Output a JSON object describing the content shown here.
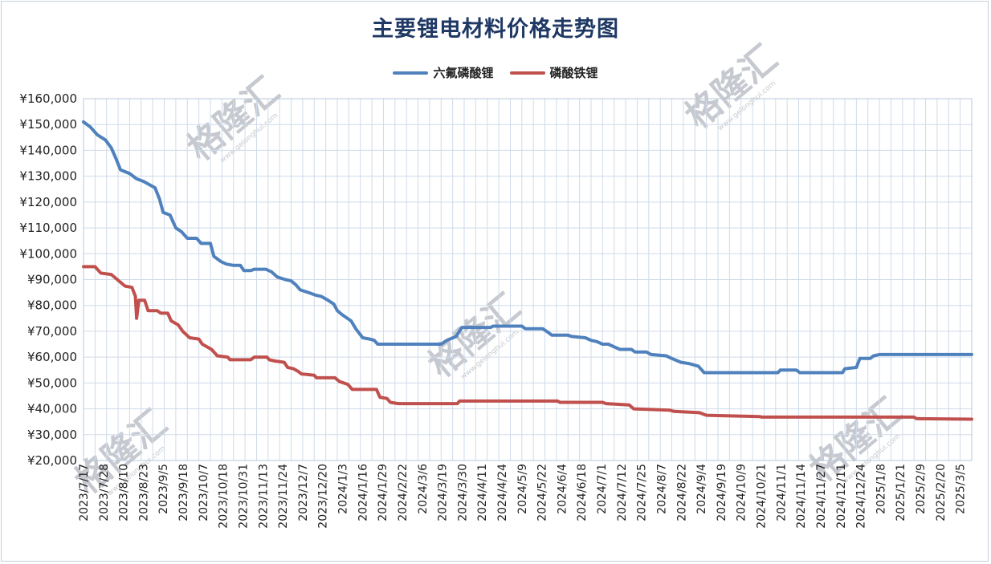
{
  "chart_data": {
    "type": "line",
    "title": "主要锂电材料价格走势图",
    "xlabel": "",
    "ylabel": "",
    "ylim": [
      20000,
      160000
    ],
    "y_ticks": [
      "¥20,000",
      "¥30,000",
      "¥40,000",
      "¥50,000",
      "¥60,000",
      "¥70,000",
      "¥80,000",
      "¥90,000",
      "¥100,000",
      "¥110,000",
      "¥120,000",
      "¥130,000",
      "¥140,000",
      "¥150,000",
      "¥160,000"
    ],
    "x_ticks": [
      "2023/7/17",
      "2023/7/28",
      "2023/8/10",
      "2023/8/23",
      "2023/9/5",
      "2023/9/18",
      "2023/10/7",
      "2023/10/18",
      "2023/10/31",
      "2023/11/13",
      "2023/11/24",
      "2023/12/7",
      "2023/12/20",
      "2024/1/3",
      "2024/1/16",
      "2024/1/29",
      "2024/2/22",
      "2024/3/6",
      "2024/3/19",
      "2024/3/30",
      "2024/4/11",
      "2024/4/24",
      "2024/5/9",
      "2024/5/22",
      "2024/6/4",
      "2024/6/18",
      "2024/7/1",
      "2024/7/12",
      "2024/7/25",
      "2024/8/7",
      "2024/8/22",
      "2024/9/4",
      "2024/9/19",
      "2024/10/9",
      "2024/10/21",
      "2024/11/1",
      "2024/11/14",
      "2024/11/27",
      "2024/12/11",
      "2024/12/24",
      "2025/1/8",
      "2025/1/21",
      "2025/2/9",
      "2025/2/20",
      "2025/3/5"
    ],
    "grid": true,
    "legend_position": "top-center",
    "series": [
      {
        "name": "六氟磷酸锂",
        "color": "#4f81bd",
        "points": [
          [
            0,
            151000
          ],
          [
            0.6,
            149000
          ],
          [
            1.2,
            146000
          ],
          [
            1.9,
            144000
          ],
          [
            2.4,
            141000
          ],
          [
            2.8,
            137000
          ],
          [
            3.2,
            132500
          ],
          [
            4,
            131000
          ],
          [
            4.6,
            129000
          ],
          [
            5.2,
            128000
          ],
          [
            5.8,
            126500
          ],
          [
            6.2,
            125500
          ],
          [
            6.6,
            121000
          ],
          [
            6.9,
            116000
          ],
          [
            7.5,
            115000
          ],
          [
            8,
            110000
          ],
          [
            8.5,
            108500
          ],
          [
            9,
            106000
          ],
          [
            9.8,
            106000
          ],
          [
            10.2,
            104000
          ],
          [
            11,
            104000
          ],
          [
            11.3,
            99000
          ],
          [
            11.9,
            97000
          ],
          [
            12.4,
            96000
          ],
          [
            13,
            95500
          ],
          [
            13.6,
            95500
          ],
          [
            13.9,
            93500
          ],
          [
            14.5,
            93500
          ],
          [
            14.8,
            94000
          ],
          [
            15.8,
            94000
          ],
          [
            16.3,
            93000
          ],
          [
            16.8,
            91000
          ],
          [
            17.5,
            90000
          ],
          [
            18,
            89500
          ],
          [
            18.4,
            88000
          ],
          [
            18.8,
            86000
          ],
          [
            19.5,
            85000
          ],
          [
            20.1,
            84000
          ],
          [
            20.6,
            83500
          ],
          [
            21.2,
            82000
          ],
          [
            21.7,
            80500
          ],
          [
            22,
            78000
          ],
          [
            22.4,
            76500
          ],
          [
            23.2,
            74000
          ],
          [
            23.6,
            71000
          ],
          [
            24.2,
            67500
          ],
          [
            24.8,
            67000
          ],
          [
            25.2,
            66500
          ],
          [
            25.5,
            65000
          ],
          [
            31,
            65000
          ],
          [
            31.5,
            66500
          ],
          [
            32.3,
            68000
          ],
          [
            32.8,
            71500
          ],
          [
            35.3,
            71500
          ],
          [
            35.5,
            72000
          ],
          [
            38,
            72000
          ],
          [
            38.3,
            71000
          ],
          [
            39.8,
            71000
          ],
          [
            40.3,
            69500
          ],
          [
            40.6,
            68500
          ],
          [
            42,
            68500
          ],
          [
            42.3,
            68000
          ],
          [
            43.5,
            67500
          ],
          [
            44,
            66500
          ],
          [
            44.5,
            66000
          ],
          [
            45,
            65000
          ],
          [
            45.5,
            65000
          ],
          [
            46,
            64000
          ],
          [
            46.5,
            63000
          ],
          [
            47.5,
            63000
          ],
          [
            47.8,
            62000
          ],
          [
            48.8,
            62000
          ],
          [
            49.2,
            61000
          ],
          [
            50.5,
            60500
          ],
          [
            51,
            59500
          ],
          [
            51.8,
            58000
          ],
          [
            52.5,
            57500
          ],
          [
            53.3,
            56500
          ],
          [
            53.8,
            54000
          ],
          [
            60.2,
            54000
          ],
          [
            60.4,
            55000
          ],
          [
            61.8,
            55000
          ],
          [
            62.1,
            54000
          ],
          [
            65.8,
            54000
          ],
          [
            66,
            55500
          ],
          [
            67,
            56000
          ],
          [
            67.3,
            59500
          ],
          [
            68.2,
            59500
          ],
          [
            68.5,
            60500
          ],
          [
            69,
            61000
          ],
          [
            77,
            61000
          ]
        ]
      },
      {
        "name": "磷酸铁锂",
        "color": "#c0504d",
        "points": [
          [
            0,
            95000
          ],
          [
            1,
            95000
          ],
          [
            1.5,
            92500
          ],
          [
            2.4,
            92000
          ],
          [
            2.8,
            90500
          ],
          [
            3.6,
            87500
          ],
          [
            4.2,
            87000
          ],
          [
            4.5,
            83500
          ],
          [
            4.6,
            75000
          ],
          [
            4.8,
            82000
          ],
          [
            5.3,
            82000
          ],
          [
            5.6,
            78000
          ],
          [
            6.4,
            78000
          ],
          [
            6.7,
            77000
          ],
          [
            7.3,
            77000
          ],
          [
            7.6,
            74000
          ],
          [
            8.2,
            72500
          ],
          [
            8.6,
            70000
          ],
          [
            9.2,
            67500
          ],
          [
            10,
            67000
          ],
          [
            10.3,
            65000
          ],
          [
            11.1,
            63000
          ],
          [
            11.6,
            60500
          ],
          [
            12.5,
            60000
          ],
          [
            12.7,
            59000
          ],
          [
            14.5,
            59000
          ],
          [
            14.8,
            60000
          ],
          [
            15.9,
            60000
          ],
          [
            16.1,
            59000
          ],
          [
            16.6,
            58500
          ],
          [
            17.4,
            58000
          ],
          [
            17.7,
            56000
          ],
          [
            18.2,
            55500
          ],
          [
            18.6,
            54500
          ],
          [
            18.9,
            53500
          ],
          [
            20,
            53000
          ],
          [
            20.2,
            52000
          ],
          [
            21.8,
            52000
          ],
          [
            22.2,
            50500
          ],
          [
            22.9,
            49500
          ],
          [
            23.3,
            47500
          ],
          [
            25.4,
            47500
          ],
          [
            25.7,
            44500
          ],
          [
            26.3,
            44000
          ],
          [
            26.6,
            42500
          ],
          [
            27.3,
            42000
          ],
          [
            32.4,
            42000
          ],
          [
            32.6,
            43000
          ],
          [
            41.1,
            43000
          ],
          [
            41.3,
            42500
          ],
          [
            45,
            42500
          ],
          [
            45.3,
            42000
          ],
          [
            47.3,
            41500
          ],
          [
            47.7,
            40000
          ],
          [
            50.8,
            39500
          ],
          [
            51.2,
            39000
          ],
          [
            53.4,
            38500
          ],
          [
            54,
            37500
          ],
          [
            58.6,
            37000
          ],
          [
            58.8,
            36800
          ],
          [
            72,
            36800
          ],
          [
            72.2,
            36200
          ],
          [
            77,
            36000
          ]
        ]
      }
    ]
  },
  "watermark": {
    "brand": "格隆汇",
    "site": "www.gelonghui.com"
  }
}
